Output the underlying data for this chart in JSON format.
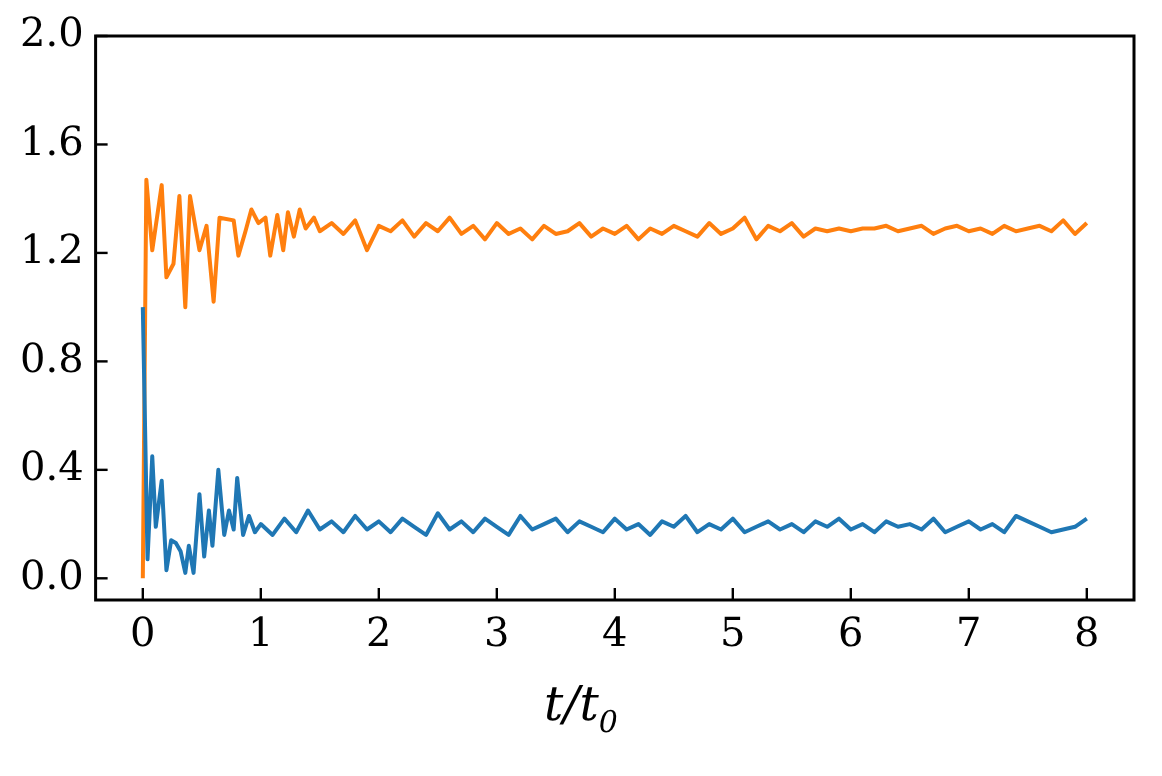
{
  "chart_data": {
    "type": "line",
    "xlabel": "t/t$_{0}$",
    "xlim": [
      -0.4,
      8.4
    ],
    "ylim": [
      -0.08,
      2.0
    ],
    "xticks": [
      0,
      1,
      2,
      3,
      4,
      5,
      6,
      7,
      8
    ],
    "yticks": [
      {
        "value": 0,
        "label": "0.0"
      },
      {
        "value": 0.4,
        "label": "0.4"
      },
      {
        "value": 0.8,
        "label": "0.8"
      },
      {
        "value": 1.2,
        "label": "1.2"
      },
      {
        "value": 1.6,
        "label": "1.6"
      },
      {
        "value": 2.0,
        "label": "2.0"
      }
    ],
    "grid": false,
    "legend": false,
    "marker": "none",
    "line_style": "solid",
    "series": [
      {
        "color": "#1f77b4",
        "x": [
          0,
          0.04,
          0.08,
          0.11,
          0.16,
          0.2,
          0.24,
          0.28,
          0.32,
          0.36,
          0.39,
          0.43,
          0.48,
          0.52,
          0.56,
          0.59,
          0.64,
          0.69,
          0.73,
          0.77,
          0.8,
          0.85,
          0.9,
          0.95,
          1.0,
          1.1,
          1.2,
          1.3,
          1.4,
          1.5,
          1.6,
          1.7,
          1.8,
          1.9,
          2.0,
          2.1,
          2.2,
          2.3,
          2.4,
          2.5,
          2.6,
          2.7,
          2.8,
          2.9,
          3.0,
          3.1,
          3.2,
          3.3,
          3.4,
          3.5,
          3.6,
          3.7,
          3.8,
          3.9,
          4.0,
          4.1,
          4.2,
          4.3,
          4.4,
          4.5,
          4.6,
          4.7,
          4.8,
          4.9,
          5.0,
          5.1,
          5.2,
          5.3,
          5.4,
          5.5,
          5.6,
          5.7,
          5.8,
          5.9,
          6.0,
          6.1,
          6.2,
          6.3,
          6.4,
          6.5,
          6.6,
          6.7,
          6.8,
          6.9,
          7.0,
          7.1,
          7.2,
          7.3,
          7.4,
          7.5,
          7.6,
          7.7,
          7.8,
          7.9,
          8.0
        ],
        "values": [
          1.0,
          0.07,
          0.45,
          0.19,
          0.36,
          0.03,
          0.14,
          0.13,
          0.1,
          0.02,
          0.12,
          0.02,
          0.31,
          0.08,
          0.25,
          0.12,
          0.4,
          0.16,
          0.25,
          0.18,
          0.37,
          0.16,
          0.23,
          0.17,
          0.2,
          0.16,
          0.22,
          0.17,
          0.25,
          0.18,
          0.21,
          0.17,
          0.23,
          0.18,
          0.21,
          0.17,
          0.22,
          0.19,
          0.16,
          0.24,
          0.18,
          0.21,
          0.17,
          0.22,
          0.19,
          0.16,
          0.23,
          0.18,
          0.2,
          0.22,
          0.17,
          0.21,
          0.19,
          0.17,
          0.22,
          0.18,
          0.2,
          0.16,
          0.21,
          0.19,
          0.23,
          0.17,
          0.2,
          0.18,
          0.22,
          0.17,
          0.19,
          0.21,
          0.18,
          0.2,
          0.17,
          0.21,
          0.19,
          0.22,
          0.18,
          0.2,
          0.17,
          0.21,
          0.19,
          0.2,
          0.18,
          0.22,
          0.17,
          0.19,
          0.21,
          0.18,
          0.2,
          0.17,
          0.23,
          0.21,
          0.19,
          0.17,
          0.18,
          0.19,
          0.22
        ]
      },
      {
        "color": "#ff7f0e",
        "x": [
          0,
          0.03,
          0.08,
          0.16,
          0.2,
          0.26,
          0.31,
          0.36,
          0.4,
          0.48,
          0.54,
          0.6,
          0.65,
          0.77,
          0.81,
          0.87,
          0.92,
          0.98,
          1.04,
          1.08,
          1.14,
          1.19,
          1.23,
          1.28,
          1.33,
          1.38,
          1.45,
          1.5,
          1.6,
          1.7,
          1.8,
          1.9,
          2.0,
          2.1,
          2.2,
          2.3,
          2.4,
          2.5,
          2.6,
          2.7,
          2.8,
          2.9,
          3.0,
          3.1,
          3.2,
          3.3,
          3.4,
          3.5,
          3.6,
          3.7,
          3.8,
          3.9,
          4.0,
          4.1,
          4.2,
          4.3,
          4.4,
          4.5,
          4.6,
          4.7,
          4.8,
          4.9,
          5.0,
          5.1,
          5.2,
          5.3,
          5.4,
          5.5,
          5.6,
          5.7,
          5.8,
          5.9,
          6.0,
          6.1,
          6.2,
          6.3,
          6.4,
          6.5,
          6.6,
          6.7,
          6.8,
          6.9,
          7.0,
          7.1,
          7.2,
          7.3,
          7.4,
          7.5,
          7.6,
          7.7,
          7.8,
          7.9,
          8.0
        ],
        "values": [
          0.0,
          1.47,
          1.21,
          1.45,
          1.11,
          1.16,
          1.41,
          1.0,
          1.41,
          1.21,
          1.3,
          1.02,
          1.33,
          1.32,
          1.19,
          1.28,
          1.36,
          1.31,
          1.33,
          1.19,
          1.34,
          1.21,
          1.35,
          1.26,
          1.36,
          1.29,
          1.33,
          1.28,
          1.31,
          1.27,
          1.32,
          1.21,
          1.3,
          1.28,
          1.32,
          1.26,
          1.31,
          1.28,
          1.33,
          1.27,
          1.3,
          1.25,
          1.31,
          1.27,
          1.29,
          1.25,
          1.3,
          1.27,
          1.28,
          1.31,
          1.26,
          1.29,
          1.27,
          1.3,
          1.25,
          1.29,
          1.27,
          1.3,
          1.28,
          1.26,
          1.31,
          1.27,
          1.29,
          1.33,
          1.25,
          1.3,
          1.28,
          1.31,
          1.26,
          1.29,
          1.28,
          1.29,
          1.28,
          1.29,
          1.29,
          1.3,
          1.28,
          1.29,
          1.3,
          1.27,
          1.29,
          1.3,
          1.28,
          1.29,
          1.27,
          1.3,
          1.28,
          1.29,
          1.3,
          1.28,
          1.32,
          1.27,
          1.31
        ]
      }
    ]
  }
}
